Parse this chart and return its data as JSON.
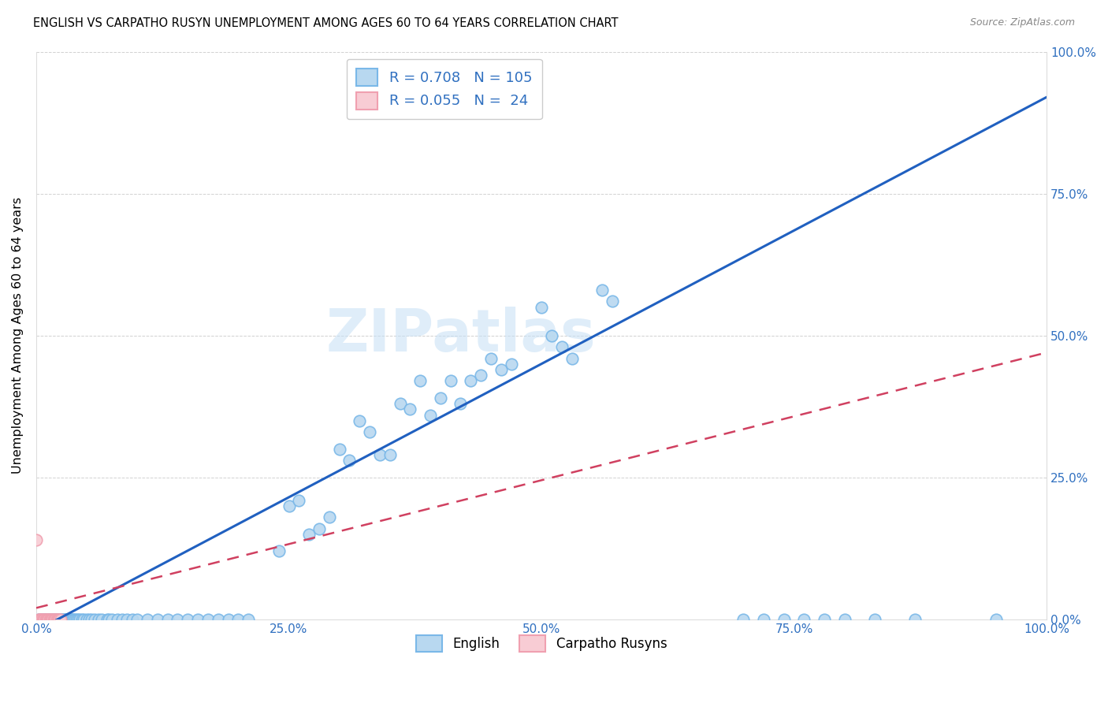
{
  "title": "ENGLISH VS CARPATHO RUSYN UNEMPLOYMENT AMONG AGES 60 TO 64 YEARS CORRELATION CHART",
  "source": "Source: ZipAtlas.com",
  "ylabel": "Unemployment Among Ages 60 to 64 years",
  "ytick_labels": [
    "0.0%",
    "25.0%",
    "50.0%",
    "75.0%",
    "100.0%"
  ],
  "ytick_values": [
    0,
    0.25,
    0.5,
    0.75,
    1.0
  ],
  "xtick_values": [
    0,
    0.25,
    0.5,
    0.75,
    1.0
  ],
  "xtick_labels": [
    "0.0%",
    "25.0%",
    "50.0%",
    "75.0%",
    "100.0%"
  ],
  "english_R": "0.708",
  "english_N": "105",
  "rusyn_R": "0.055",
  "rusyn_N": "24",
  "english_color": "#7ab8e8",
  "english_face": "#b8d8f0",
  "rusyn_color": "#f0a0b0",
  "rusyn_face": "#f8ccd4",
  "trend_english_color": "#2060c0",
  "trend_rusyn_color": "#d04060",
  "watermark": "ZIPatlas",
  "english_scatter_x": [
    0.002,
    0.003,
    0.005,
    0.006,
    0.007,
    0.008,
    0.009,
    0.01,
    0.011,
    0.012,
    0.013,
    0.014,
    0.015,
    0.016,
    0.017,
    0.018,
    0.019,
    0.02,
    0.021,
    0.022,
    0.023,
    0.024,
    0.025,
    0.026,
    0.027,
    0.028,
    0.029,
    0.03,
    0.031,
    0.032,
    0.033,
    0.034,
    0.035,
    0.036,
    0.037,
    0.038,
    0.04,
    0.041,
    0.043,
    0.045,
    0.047,
    0.05,
    0.052,
    0.055,
    0.058,
    0.062,
    0.065,
    0.07,
    0.072,
    0.075,
    0.08,
    0.085,
    0.09,
    0.095,
    0.1,
    0.11,
    0.12,
    0.13,
    0.14,
    0.15,
    0.16,
    0.17,
    0.18,
    0.19,
    0.2,
    0.21,
    0.24,
    0.25,
    0.26,
    0.27,
    0.28,
    0.29,
    0.3,
    0.31,
    0.32,
    0.33,
    0.34,
    0.35,
    0.36,
    0.37,
    0.38,
    0.39,
    0.4,
    0.41,
    0.42,
    0.43,
    0.44,
    0.45,
    0.46,
    0.47,
    0.5,
    0.51,
    0.52,
    0.53,
    0.56,
    0.57,
    0.7,
    0.72,
    0.74,
    0.76,
    0.78,
    0.8,
    0.83,
    0.87,
    0.95
  ],
  "english_scatter_y": [
    0.0,
    0.0,
    0.0,
    0.0,
    0.0,
    0.0,
    0.0,
    0.0,
    0.0,
    0.0,
    0.0,
    0.0,
    0.0,
    0.0,
    0.0,
    0.0,
    0.0,
    0.0,
    0.0,
    0.0,
    0.0,
    0.0,
    0.0,
    0.0,
    0.0,
    0.0,
    0.0,
    0.0,
    0.0,
    0.0,
    0.0,
    0.0,
    0.0,
    0.0,
    0.0,
    0.0,
    0.0,
    0.0,
    0.0,
    0.0,
    0.0,
    0.0,
    0.0,
    0.0,
    0.0,
    0.0,
    0.0,
    0.0,
    0.0,
    0.0,
    0.0,
    0.0,
    0.0,
    0.0,
    0.0,
    0.0,
    0.0,
    0.0,
    0.0,
    0.0,
    0.0,
    0.0,
    0.0,
    0.0,
    0.0,
    0.0,
    0.12,
    0.2,
    0.21,
    0.15,
    0.16,
    0.18,
    0.3,
    0.28,
    0.35,
    0.33,
    0.29,
    0.29,
    0.38,
    0.37,
    0.42,
    0.36,
    0.39,
    0.42,
    0.38,
    0.42,
    0.43,
    0.46,
    0.44,
    0.45,
    0.55,
    0.5,
    0.48,
    0.46,
    0.58,
    0.56,
    0.0,
    0.0,
    0.0,
    0.0,
    0.0,
    0.0,
    0.0,
    0.0,
    0.0
  ],
  "rusyn_scatter_x": [
    0.0,
    0.002,
    0.003,
    0.004,
    0.005,
    0.006,
    0.007,
    0.008,
    0.009,
    0.01,
    0.011,
    0.012,
    0.013,
    0.014,
    0.015,
    0.016,
    0.017,
    0.018,
    0.019,
    0.02,
    0.021,
    0.022,
    0.023,
    0.024
  ],
  "rusyn_scatter_y": [
    0.14,
    0.0,
    0.0,
    0.0,
    0.0,
    0.0,
    0.0,
    0.0,
    0.0,
    0.0,
    0.0,
    0.0,
    0.0,
    0.0,
    0.0,
    0.0,
    0.0,
    0.0,
    0.0,
    0.0,
    0.0,
    0.0,
    0.0,
    0.0
  ],
  "trend_english_x0": 0.0,
  "trend_english_x1": 1.0,
  "trend_english_y0": -0.02,
  "trend_english_y1": 0.92,
  "trend_rusyn_x0": 0.0,
  "trend_rusyn_x1": 1.0,
  "trend_rusyn_y0": 0.02,
  "trend_rusyn_y1": 0.47
}
